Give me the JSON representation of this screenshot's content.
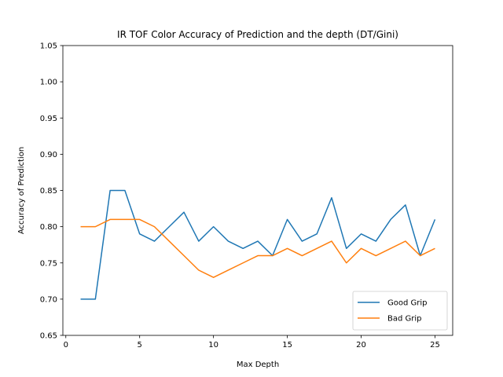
{
  "chart_data": {
    "type": "line",
    "title": "IR TOF Color Accuracy of Prediction and the depth (DT/Gini)",
    "xlabel": "Max Depth",
    "ylabel": "Accuracy of Prediction",
    "xlim": [
      -0.2,
      26.2
    ],
    "ylim": [
      0.65,
      1.05
    ],
    "xticks": [
      0,
      5,
      10,
      15,
      20,
      25
    ],
    "xtick_labels": [
      "0",
      "5",
      "10",
      "15",
      "20",
      "25"
    ],
    "yticks": [
      0.65,
      0.7,
      0.75,
      0.8,
      0.85,
      0.9,
      0.95,
      1.0,
      1.05
    ],
    "ytick_labels": [
      "0.65",
      "0.70",
      "0.75",
      "0.80",
      "0.85",
      "0.90",
      "0.95",
      "1.00",
      "1.05"
    ],
    "grid": false,
    "legend_position": "bottom-right",
    "x": [
      1,
      2,
      3,
      4,
      5,
      6,
      7,
      8,
      9,
      10,
      11,
      12,
      13,
      14,
      15,
      16,
      17,
      18,
      19,
      20,
      21,
      22,
      23,
      24,
      25
    ],
    "series": [
      {
        "name": "Good Grip",
        "color": "#1f77b4",
        "values": [
          0.7,
          0.7,
          0.85,
          0.85,
          0.79,
          0.78,
          0.8,
          0.82,
          0.78,
          0.8,
          0.78,
          0.77,
          0.78,
          0.76,
          0.81,
          0.78,
          0.79,
          0.84,
          0.77,
          0.79,
          0.78,
          0.81,
          0.83,
          0.76,
          0.81
        ]
      },
      {
        "name": "Bad Grip",
        "color": "#ff7f0e",
        "values": [
          0.8,
          0.8,
          0.81,
          0.81,
          0.81,
          0.8,
          0.78,
          0.76,
          0.74,
          0.73,
          0.74,
          0.75,
          0.76,
          0.76,
          0.77,
          0.76,
          0.77,
          0.78,
          0.75,
          0.77,
          0.76,
          0.77,
          0.78,
          0.76,
          0.77
        ]
      }
    ]
  }
}
